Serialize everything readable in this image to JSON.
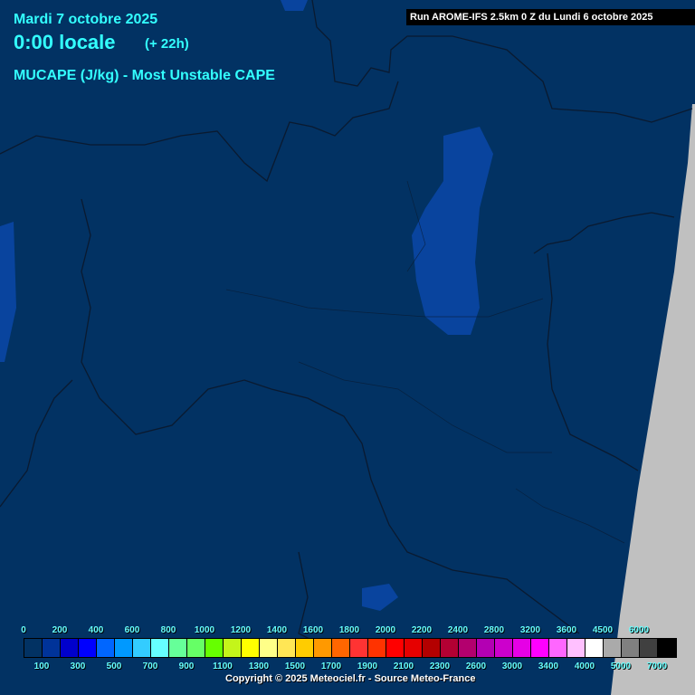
{
  "header": {
    "date": "Mardi 7 octobre 2025",
    "time": "0:00 locale",
    "lead": "(+ 22h)",
    "parameter": "MUCAPE (J/kg) - Most Unstable CAPE"
  },
  "run_label": "Run AROME-IFS 2.5km 0 Z du Lundi 6 octobre 2025",
  "colors": {
    "background": "#023263",
    "no_data": "#c0c0c0",
    "borders": "#0a1a30",
    "patch": "#0a48a8"
  },
  "legend": {
    "top_labels": [
      "0",
      "200",
      "400",
      "600",
      "800",
      "1000",
      "1200",
      "1400",
      "1600",
      "1800",
      "2000",
      "2200",
      "2400",
      "2800",
      "3200",
      "3600",
      "4500",
      "6000"
    ],
    "bottom_labels": [
      "100",
      "300",
      "500",
      "700",
      "900",
      "1100",
      "1300",
      "1500",
      "1700",
      "1900",
      "2100",
      "2300",
      "2600",
      "3000",
      "3400",
      "4000",
      "5000",
      "7000"
    ],
    "colors": [
      "#023263",
      "#003399",
      "#0000cc",
      "#0000ff",
      "#0066ff",
      "#0099ff",
      "#33ccff",
      "#66ffff",
      "#66ff99",
      "#66ff66",
      "#66ff00",
      "#c4f51a",
      "#ffff00",
      "#ffff88",
      "#ffe655",
      "#ffcc00",
      "#ff9900",
      "#ff6600",
      "#ff3333",
      "#ff3300",
      "#ff0000",
      "#e60000",
      "#b30000",
      "#b30033",
      "#b3006e",
      "#b300b3",
      "#cc00cc",
      "#e600e6",
      "#ff00ff",
      "#ff66ff",
      "#ffc0ff",
      "#ffffff",
      "#aaaaaa",
      "#808080",
      "#404040",
      "#000000"
    ]
  },
  "copyright": "Copyright © 2025 Meteociel.fr - Source Meteo-France"
}
